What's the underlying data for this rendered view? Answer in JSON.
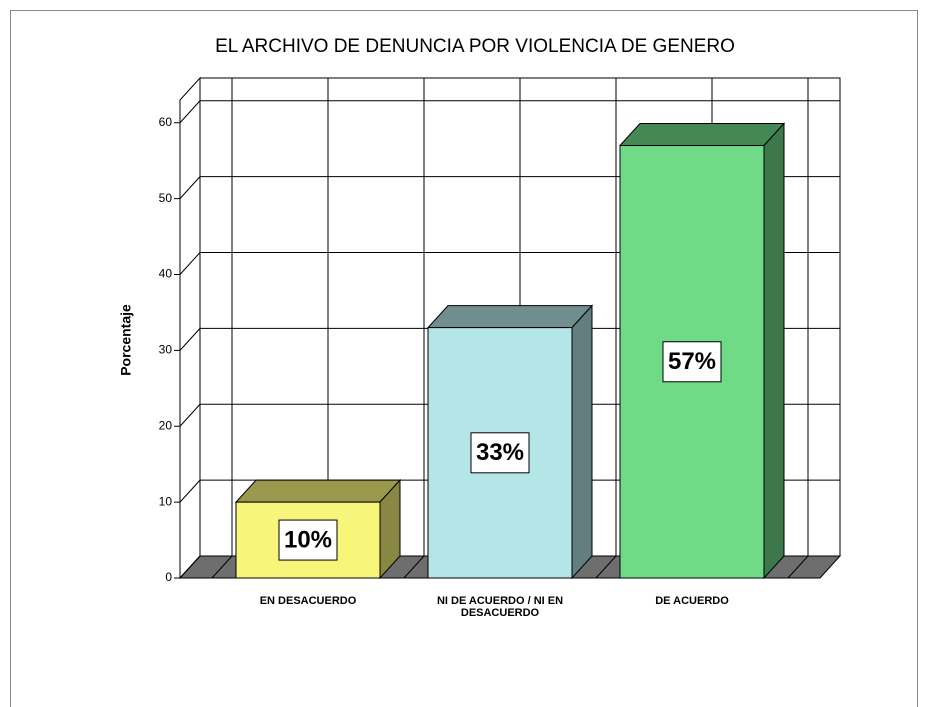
{
  "chart_data": {
    "type": "bar3d",
    "title": "EL ARCHIVO DE DENUNCIA POR VIOLENCIA DE GENERO",
    "y_label": "Porcentaje",
    "categories": [
      "EN DESACUERDO",
      "NI DE ACUERDO / NI EN DESACUERDO",
      "DE ACUERDO"
    ],
    "values": [
      10,
      33,
      57
    ],
    "value_labels": [
      "10%",
      "33%",
      "57%"
    ],
    "colors": [
      "#f7f57a",
      "#b4e5e7",
      "#6fdb87"
    ],
    "ylim": [
      0,
      63
    ],
    "yticks": [
      0,
      10,
      20,
      30,
      40,
      50,
      60
    ],
    "grid": true
  }
}
